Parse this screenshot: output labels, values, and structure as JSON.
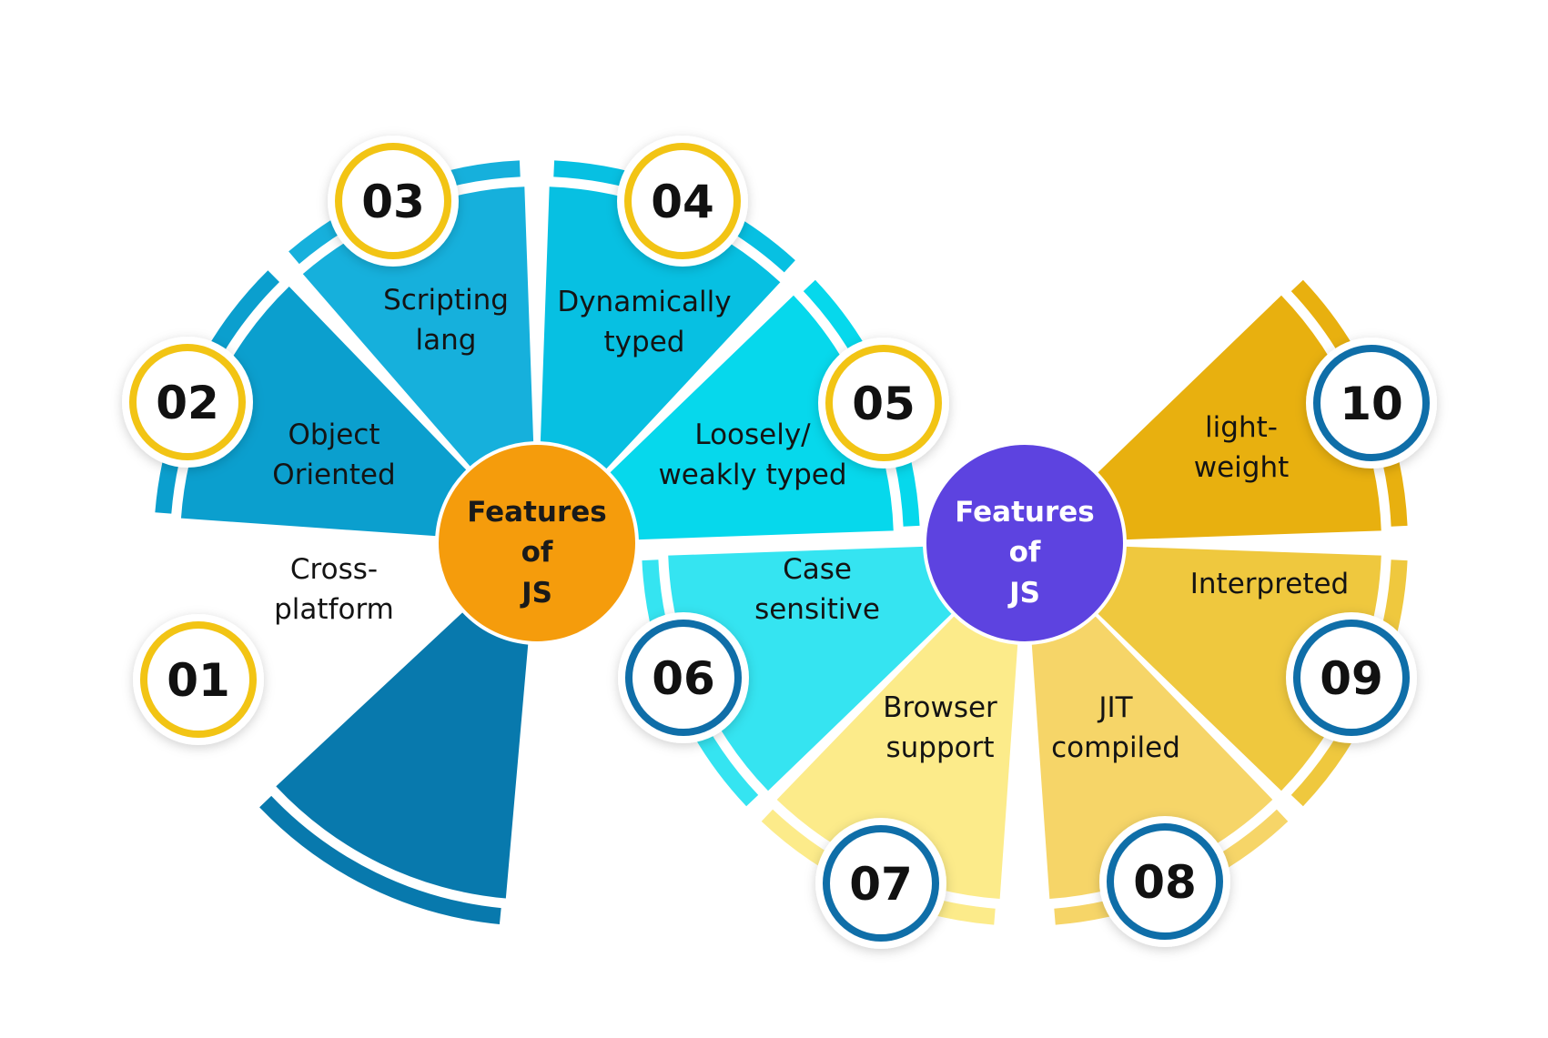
{
  "left_hub": {
    "lines": [
      "Features",
      "of",
      "JS"
    ],
    "color": "#f59c0c",
    "text_color": "#1a1a1a"
  },
  "right_hub": {
    "lines": [
      "Features",
      "of",
      "JS"
    ],
    "color": "#5d43e0",
    "text_color": "#ffffff"
  },
  "left_ring_color": "#f2c414",
  "right_ring_color": "#0f6ea8",
  "features": [
    {
      "num": "01",
      "lines": [
        "Cross-",
        "platform"
      ],
      "color": "#0879ad"
    },
    {
      "num": "02",
      "lines": [
        "Object",
        "Oriented"
      ],
      "color": "#0b9fce"
    },
    {
      "num": "03",
      "lines": [
        "Scripting",
        "lang"
      ],
      "color": "#16b0dc"
    },
    {
      "num": "04",
      "lines": [
        "Dynamically",
        "typed"
      ],
      "color": "#07c0e2"
    },
    {
      "num": "05",
      "lines": [
        "Loosely/",
        "weakly typed"
      ],
      "color": "#06d8ec"
    },
    {
      "num": "06",
      "lines": [
        "Case",
        "sensitive"
      ],
      "color": "#35e4f1"
    },
    {
      "num": "07",
      "lines": [
        "Browser",
        "support"
      ],
      "color": "#fceb8a"
    },
    {
      "num": "08",
      "lines": [
        "JIT",
        "compiled"
      ],
      "color": "#f6d568"
    },
    {
      "num": "09",
      "lines": [
        "Interpreted"
      ],
      "color": "#efc83e"
    },
    {
      "num": "10",
      "lines": [
        "light-",
        "weight"
      ],
      "color": "#e8b00f"
    }
  ]
}
